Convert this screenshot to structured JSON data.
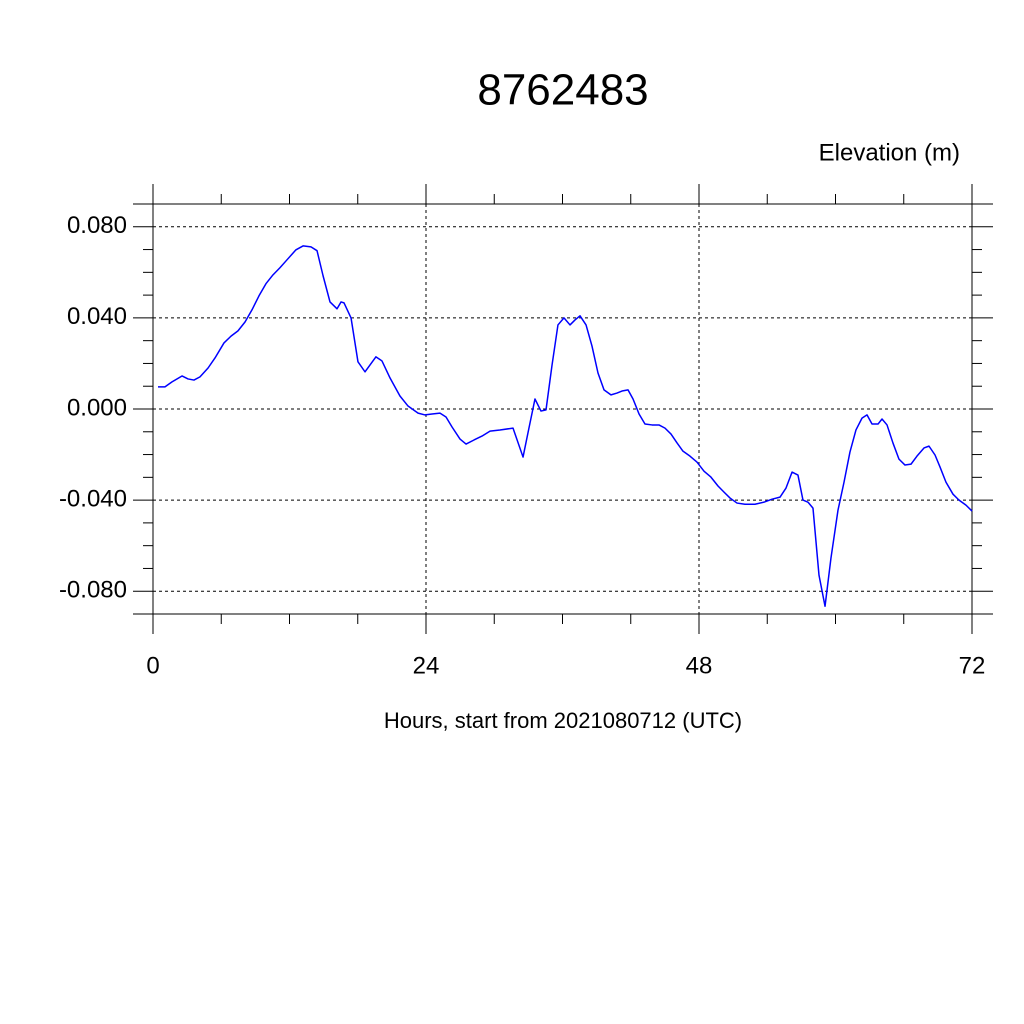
{
  "chart_data": {
    "type": "line",
    "title": "8762483",
    "y_label": "Elevation (m)",
    "x_label": "Hours, start from 2021080712 (UTC)",
    "xlim": [
      0,
      72
    ],
    "ylim": [
      -0.09,
      0.09
    ],
    "xticks": [
      0,
      24,
      48,
      72
    ],
    "xminor_ticks": [
      6,
      12,
      18,
      30,
      36,
      42,
      54,
      60,
      66
    ],
    "yticks": [
      {
        "value": -0.08,
        "label": "-0.080"
      },
      {
        "value": -0.04,
        "label": "-0.040"
      },
      {
        "value": 0,
        "label": "0.000"
      },
      {
        "value": 0.04,
        "label": "0.040"
      },
      {
        "value": 0.08,
        "label": "0.080"
      }
    ],
    "yminor_ticks": [
      -0.09,
      -0.07,
      -0.06,
      -0.05,
      -0.03,
      -0.02,
      -0.01,
      0.01,
      0.02,
      0.03,
      0.05,
      0.06,
      0.07,
      0.09
    ],
    "grid": true,
    "x": [
      0.44,
      1.05,
      1.67,
      2.55,
      3.08,
      3.6,
      4.13,
      4.84,
      5.45,
      6.24,
      6.86,
      7.47,
      8.09,
      8.7,
      9.32,
      9.93,
      10.55,
      11.16,
      11.78,
      12.57,
      13.19,
      13.89,
      14.42,
      14.95,
      15.56,
      16.18,
      16.53,
      16.79,
      17.41,
      18.02,
      18.64,
      19.6,
      20.13,
      20.84,
      21.71,
      22.42,
      23.3,
      23.91,
      24.53,
      25.23,
      25.76,
      26.29,
      26.99,
      27.52,
      28.22,
      28.92,
      29.63,
      30.5,
      31.65,
      32.53,
      33.05,
      33.58,
      34.11,
      34.55,
      35.08,
      35.6,
      36.13,
      36.66,
      37.1,
      37.54,
      38.07,
      38.59,
      39.12,
      39.65,
      40.26,
      40.79,
      41.23,
      41.76,
      42.2,
      42.73,
      43.25,
      43.87,
      44.48,
      45.01,
      45.54,
      46.07,
      46.59,
      47.21,
      47.82,
      48.44,
      49.05,
      49.67,
      50.2,
      50.73,
      51.34,
      52.04,
      52.92,
      53.71,
      54.42,
      55.12,
      55.65,
      56.18,
      56.7,
      57.14,
      57.58,
      58.02,
      58.55,
      59.08,
      59.6,
      60.22,
      60.75,
      61.27,
      61.8,
      62.33,
      62.77,
      63.21,
      63.74,
      64.09,
      64.53,
      65.05,
      65.58,
      66.11,
      66.64,
      67.16,
      67.78,
      68.22,
      68.75,
      69.19,
      69.71,
      70.33,
      70.86,
      71.47,
      72
    ],
    "series": [
      {
        "name": "Elevation",
        "color": "#0000ff",
        "values": [
          0.0097,
          0.0097,
          0.0119,
          0.0145,
          0.0132,
          0.0127,
          0.0141,
          0.018,
          0.0224,
          0.029,
          0.032,
          0.0343,
          0.0382,
          0.0435,
          0.0497,
          0.055,
          0.0589,
          0.062,
          0.0655,
          0.0699,
          0.0716,
          0.0712,
          0.0695,
          0.0585,
          0.047,
          0.044,
          0.047,
          0.0466,
          0.04,
          0.0207,
          0.0163,
          0.0229,
          0.0211,
          0.0136,
          0.0057,
          0.0013,
          -0.0018,
          -0.0026,
          -0.0022,
          -0.0018,
          -0.0035,
          -0.0079,
          -0.0132,
          -0.0154,
          -0.0136,
          -0.0119,
          -0.0097,
          -0.0092,
          -0.0084,
          -0.0211,
          -0.0084,
          0.0044,
          -0.0009,
          -0.0004,
          0.0193,
          0.0369,
          0.04,
          0.0369,
          0.0391,
          0.0409,
          0.0369,
          0.0277,
          0.0158,
          0.0084,
          0.0062,
          0.007,
          0.0079,
          0.0084,
          0.0044,
          -0.0022,
          -0.0066,
          -0.007,
          -0.007,
          -0.0084,
          -0.011,
          -0.0149,
          -0.0185,
          -0.0207,
          -0.0233,
          -0.0273,
          -0.0299,
          -0.0338,
          -0.0365,
          -0.0391,
          -0.0413,
          -0.0418,
          -0.0418,
          -0.0409,
          -0.0396,
          -0.0387,
          -0.0347,
          -0.0277,
          -0.029,
          -0.04,
          -0.0409,
          -0.0435,
          -0.073,
          -0.0866,
          -0.0655,
          -0.0444,
          -0.0321,
          -0.0189,
          -0.0092,
          -0.004,
          -0.0026,
          -0.0066,
          -0.0066,
          -0.0044,
          -0.007,
          -0.0149,
          -0.022,
          -0.0246,
          -0.0242,
          -0.0207,
          -0.0171,
          -0.0163,
          -0.0202,
          -0.0255,
          -0.0321,
          -0.0374,
          -0.04,
          -0.0422,
          -0.0448
        ]
      }
    ]
  }
}
